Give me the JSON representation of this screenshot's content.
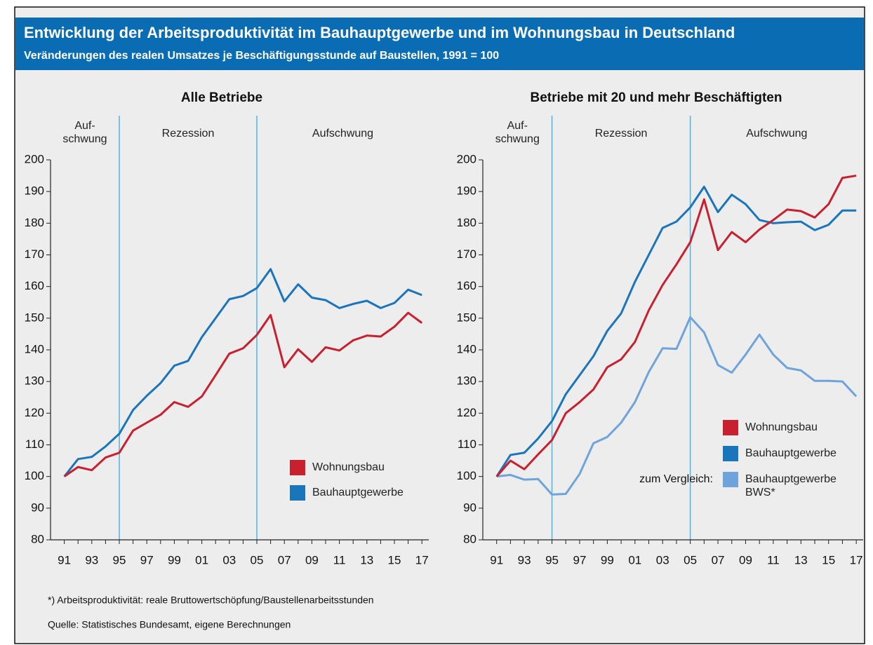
{
  "title": "Entwicklung der Arbeitsproduktivität im Bauhauptgewerbe und im Wohnungsbau in Deutschland",
  "subtitle": "Veränderungen des realen Umsatzes je Beschäftigungsstunde auf Baustellen, 1991 = 100",
  "chart_data": [
    {
      "type": "line",
      "title": "Alle Betriebe",
      "x": [
        1991,
        1992,
        1993,
        1994,
        1995,
        1996,
        1997,
        1998,
        1999,
        2000,
        2001,
        2002,
        2003,
        2004,
        2005,
        2006,
        2007,
        2008,
        2009,
        2010,
        2011,
        2012,
        2013,
        2014,
        2015,
        2016,
        2017
      ],
      "xlim": [
        1990,
        2017.5
      ],
      "xticks": [
        {
          "value": 1991,
          "label": "91"
        },
        {
          "value": 1993,
          "label": "93"
        },
        {
          "value": 1995,
          "label": "95"
        },
        {
          "value": 1997,
          "label": "97"
        },
        {
          "value": 1999,
          "label": "99"
        },
        {
          "value": 2001,
          "label": "01"
        },
        {
          "value": 2003,
          "label": "03"
        },
        {
          "value": 2005,
          "label": "05"
        },
        {
          "value": 2007,
          "label": "07"
        },
        {
          "value": 2009,
          "label": "09"
        },
        {
          "value": 2011,
          "label": "11"
        },
        {
          "value": 2013,
          "label": "13"
        },
        {
          "value": 2015,
          "label": "15"
        },
        {
          "value": 2017,
          "label": "17"
        }
      ],
      "ylim": [
        80,
        200
      ],
      "yticks": [
        80,
        90,
        100,
        110,
        120,
        130,
        140,
        150,
        160,
        170,
        180,
        190,
        200
      ],
      "phase_lines": [
        1995,
        2005
      ],
      "phases": [
        "Auf-\nschwung",
        "Rezession",
        "Aufschwung"
      ],
      "series": [
        {
          "name": "Wohnungsbau",
          "color": "#c8202f",
          "values": [
            100,
            103,
            102,
            106,
            107.5,
            114.5,
            117,
            119.5,
            123.5,
            122,
            125.3,
            132,
            138.8,
            140.5,
            144.7,
            151,
            134.5,
            140.2,
            136.2,
            140.8,
            139.8,
            143,
            144.5,
            144.2,
            147.3,
            151.7,
            148.5
          ]
        },
        {
          "name": "Bauhauptgewerbe",
          "color": "#1a75bb",
          "values": [
            100,
            105.5,
            106.2,
            109.5,
            113.5,
            121,
            125.5,
            129.5,
            135,
            136.5,
            144,
            150,
            156,
            157,
            159.5,
            165.5,
            155.3,
            160.7,
            156.5,
            155.7,
            153.2,
            154.5,
            155.5,
            153.2,
            154.8,
            159,
            157.3
          ]
        }
      ]
    },
    {
      "type": "line",
      "title": "Betriebe mit 20 und mehr Beschäftigten",
      "x": [
        1991,
        1992,
        1993,
        1994,
        1995,
        1996,
        1997,
        1998,
        1999,
        2000,
        2001,
        2002,
        2003,
        2004,
        2005,
        2006,
        2007,
        2008,
        2009,
        2010,
        2011,
        2012,
        2013,
        2014,
        2015,
        2016,
        2017
      ],
      "xlim": [
        1990,
        2017.5
      ],
      "xticks": [
        {
          "value": 1991,
          "label": "91"
        },
        {
          "value": 1993,
          "label": "93"
        },
        {
          "value": 1995,
          "label": "95"
        },
        {
          "value": 1997,
          "label": "97"
        },
        {
          "value": 1999,
          "label": "99"
        },
        {
          "value": 2001,
          "label": "01"
        },
        {
          "value": 2003,
          "label": "03"
        },
        {
          "value": 2005,
          "label": "05"
        },
        {
          "value": 2007,
          "label": "07"
        },
        {
          "value": 2009,
          "label": "09"
        },
        {
          "value": 2011,
          "label": "11"
        },
        {
          "value": 2013,
          "label": "13"
        },
        {
          "value": 2015,
          "label": "15"
        },
        {
          "value": 2017,
          "label": "17"
        }
      ],
      "ylim": [
        80,
        200
      ],
      "yticks": [
        80,
        90,
        100,
        110,
        120,
        130,
        140,
        150,
        160,
        170,
        180,
        190,
        200
      ],
      "phase_lines": [
        1995,
        2005
      ],
      "phases": [
        "Auf-\nschwung",
        "Rezession",
        "Aufschwung"
      ],
      "series": [
        {
          "name": "Wohnungsbau",
          "color": "#c8202f",
          "values": [
            100,
            105,
            102.3,
            107,
            111.5,
            120,
            123.5,
            127.5,
            134.5,
            137,
            142.5,
            152.5,
            160.5,
            167,
            174,
            187.5,
            171.5,
            177.2,
            174,
            178,
            181,
            184.3,
            183.8,
            181.8,
            186,
            194.3,
            195
          ]
        },
        {
          "name": "Bauhauptgewerbe",
          "color": "#1a75bb",
          "values": [
            100,
            106.8,
            107.5,
            112,
            117.5,
            126,
            132,
            138,
            146,
            151.5,
            161.5,
            170,
            178.5,
            180.5,
            185,
            191.5,
            183.5,
            189,
            186,
            181,
            180,
            180.3,
            180.5,
            177.8,
            179.5,
            184,
            184
          ]
        },
        {
          "name": "Bauhauptgewerbe BWS*",
          "color": "#6fa3dc",
          "legend_prefix": "zum Vergleich:",
          "values": [
            100,
            100.5,
            99,
            99.2,
            94.3,
            94.5,
            100.8,
            110.5,
            112.5,
            117,
            123.5,
            133,
            140.5,
            140.3,
            150.3,
            145.5,
            135.2,
            132.8,
            138.5,
            144.8,
            138.5,
            134.3,
            133.5,
            130.2,
            130.2,
            130,
            125.3
          ]
        }
      ]
    }
  ],
  "footnotes": [
    "*) Arbeitsproduktivität: reale Bruttowertschöpfung/Baustellenarbeitsstunden",
    "Quelle: Statistisches Bundesamt, eigene Berechnungen"
  ]
}
